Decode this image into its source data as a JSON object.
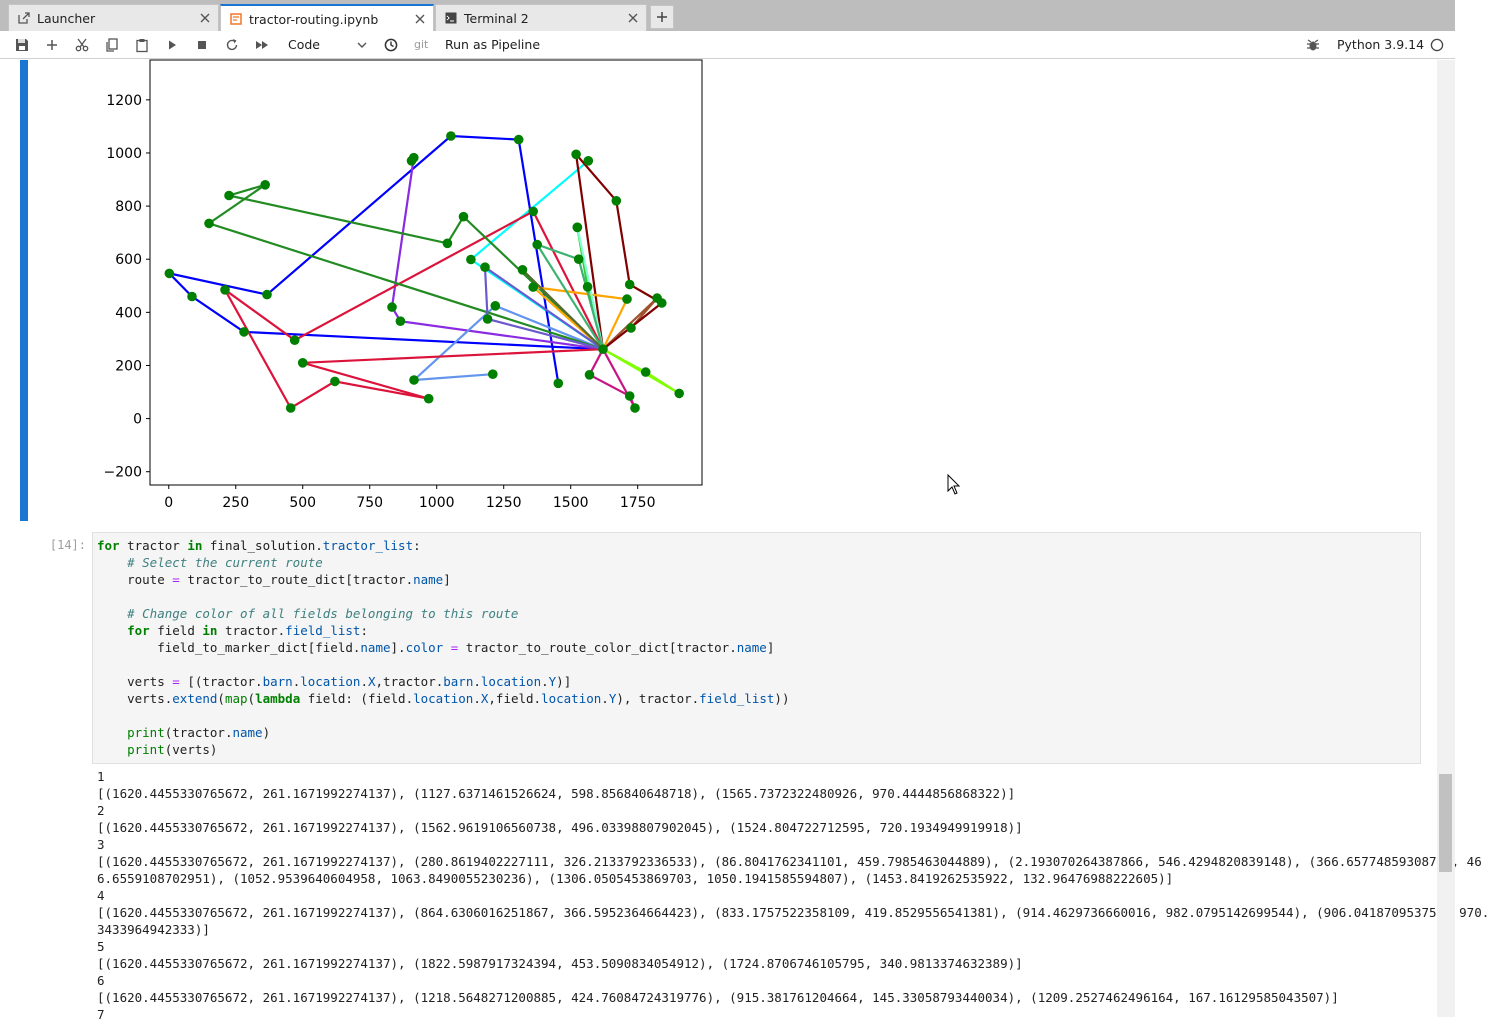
{
  "tabs": [
    {
      "label": "Launcher",
      "icon": "external-link-icon"
    },
    {
      "label": "tractor-routing.ipynb",
      "icon": "notebook-icon"
    },
    {
      "label": "Terminal 2",
      "icon": "terminal-icon"
    }
  ],
  "toolbar": {
    "cell_type": "Code",
    "git_label": "git",
    "pipeline_label": "Run as Pipeline",
    "kernel_name": "Python 3.9.14"
  },
  "cell": {
    "prompt": "[14]:"
  },
  "output_text": "1\n[(1620.4455330765672, 261.1671992274137), (1127.6371461526624, 598.856840648718), (1565.7372322480926, 970.4444856868322)]\n2\n[(1620.4455330765672, 261.1671992274137), (1562.9619106560738, 496.03398807902045), (1524.804722712595, 720.1934949919918)]\n3\n[(1620.4455330765672, 261.1671992274137), (280.8619402227111, 326.2133792336533), (86.8041762341101, 459.7985463044889), (2.193070264387866, 546.4294820839148), (366.65774859308743, 46\n6.6559108702951), (1052.9539640604958, 1063.8490055230236), (1306.0505453869703, 1050.1941585594807), (1453.8419262535922, 132.96476988222605)]\n4\n[(1620.4455330765672, 261.1671992274137), (864.6306016251867, 366.5952364664423), (833.1757522358109, 419.8529556541381), (914.4629736660016, 982.0795142699544), (906.041870953757, 970.\n3433964942333)]\n5\n[(1620.4455330765672, 261.1671992274137), (1822.5987917324394, 453.5090834054912), (1724.8706746105795, 340.9813374632389)]\n6\n[(1620.4455330765672, 261.1671992274137), (1218.5648271200885, 424.76084724319776), (915.381761204664, 145.33058793440034), (1209.2527462496164, 167.16129585043507)]\n7",
  "chart_data": {
    "type": "scatter",
    "title": "",
    "xlabel": "",
    "ylabel": "",
    "xlim": [
      -70,
      1990
    ],
    "ylim": [
      -250,
      1350
    ],
    "xticks": [
      0,
      250,
      500,
      750,
      1000,
      1250,
      1500,
      1750
    ],
    "yticks": [
      -200,
      0,
      200,
      400,
      600,
      800,
      1000,
      1200
    ],
    "x_tick_labels": [
      "0",
      "250",
      "500",
      "750",
      "1000",
      "1250",
      "1500",
      "1750"
    ],
    "y_tick_labels": [
      "−200",
      "0",
      "200",
      "400",
      "600",
      "800",
      "1000",
      "1200"
    ],
    "barn": [
      1620.45,
      261.17
    ],
    "marker_color": "#008000",
    "routes": [
      {
        "color": "#00ffff",
        "points": [
          [
            1620.45,
            261.17
          ],
          [
            1127.64,
            598.86
          ],
          [
            1565.74,
            970.44
          ]
        ]
      },
      {
        "color": "#32cd32",
        "points": [
          [
            1620.45,
            261.17
          ],
          [
            1562.96,
            496.03
          ],
          [
            1524.8,
            720.19
          ]
        ]
      },
      {
        "color": "#0000ff",
        "points": [
          [
            1620.45,
            261.17
          ],
          [
            280.86,
            326.21
          ],
          [
            86.8,
            459.8
          ],
          [
            2.19,
            546.43
          ],
          [
            366.66,
            466.66
          ],
          [
            1052.95,
            1063.85
          ],
          [
            1306.05,
            1050.19
          ],
          [
            1453.84,
            132.96
          ]
        ]
      },
      {
        "color": "#8a2be2",
        "points": [
          [
            1620.45,
            261.17
          ],
          [
            864.63,
            366.6
          ],
          [
            833.18,
            419.85
          ],
          [
            914.46,
            982.08
          ],
          [
            906.04,
            970.34
          ]
        ]
      },
      {
        "color": "#a0522d",
        "points": [
          [
            1620.45,
            261.17
          ],
          [
            1822.6,
            453.51
          ],
          [
            1724.87,
            340.98
          ]
        ]
      },
      {
        "color": "#6495ed",
        "points": [
          [
            1620.45,
            261.17
          ],
          [
            1218.56,
            424.76
          ],
          [
            915.38,
            145.33
          ],
          [
            1209.25,
            167.16
          ]
        ]
      },
      {
        "color": "#dc143c",
        "points": [
          [
            1620.45,
            261.17
          ],
          [
            500,
            210
          ],
          [
            970,
            75
          ],
          [
            620,
            140
          ],
          [
            455,
            40
          ],
          [
            210,
            485
          ],
          [
            470,
            295
          ],
          [
            1360,
            780
          ],
          [
            1620.45,
            261.17
          ]
        ]
      },
      {
        "color": "#228b22",
        "points": [
          [
            1620.45,
            261.17
          ],
          [
            1100,
            760
          ],
          [
            1040,
            660
          ],
          [
            225,
            840
          ],
          [
            360,
            880
          ],
          [
            150,
            735
          ],
          [
            1620.45,
            261.17
          ]
        ]
      },
      {
        "color": "#800000",
        "points": [
          [
            1620.45,
            261.17
          ],
          [
            1840,
            435
          ],
          [
            1720,
            505
          ],
          [
            1670,
            820
          ],
          [
            1520,
            995
          ],
          [
            1620.45,
            261.17
          ]
        ]
      },
      {
        "color": "#ffa500",
        "points": [
          [
            1620.45,
            261.17
          ],
          [
            1710,
            450
          ],
          [
            1360,
            495
          ],
          [
            1620.45,
            261.17
          ]
        ]
      },
      {
        "color": "#7fff00",
        "points": [
          [
            1620.45,
            261.17
          ],
          [
            1905,
            95
          ],
          [
            1780,
            175
          ],
          [
            1620.45,
            261.17
          ]
        ]
      },
      {
        "color": "#c71585",
        "points": [
          [
            1620.45,
            261.17
          ],
          [
            1740,
            40
          ],
          [
            1720,
            85
          ],
          [
            1570,
            165
          ],
          [
            1620.45,
            261.17
          ]
        ]
      },
      {
        "color": "#7fffd4",
        "points": [
          [
            1620.45,
            261.17
          ],
          [
            1525,
            720
          ]
        ]
      },
      {
        "color": "#6a5acd",
        "points": [
          [
            1620.45,
            261.17
          ],
          [
            1180,
            570
          ],
          [
            1190,
            375
          ],
          [
            1620.45,
            261.17
          ]
        ]
      },
      {
        "color": "#3cb371",
        "points": [
          [
            1620.45,
            261.17
          ],
          [
            1375,
            655
          ],
          [
            1530,
            600
          ],
          [
            1620.45,
            261.17
          ]
        ]
      },
      {
        "color": "#556b2f",
        "points": [
          [
            1620.45,
            261.17
          ],
          [
            1320,
            560
          ],
          [
            1620.45,
            261.17
          ]
        ]
      }
    ]
  }
}
